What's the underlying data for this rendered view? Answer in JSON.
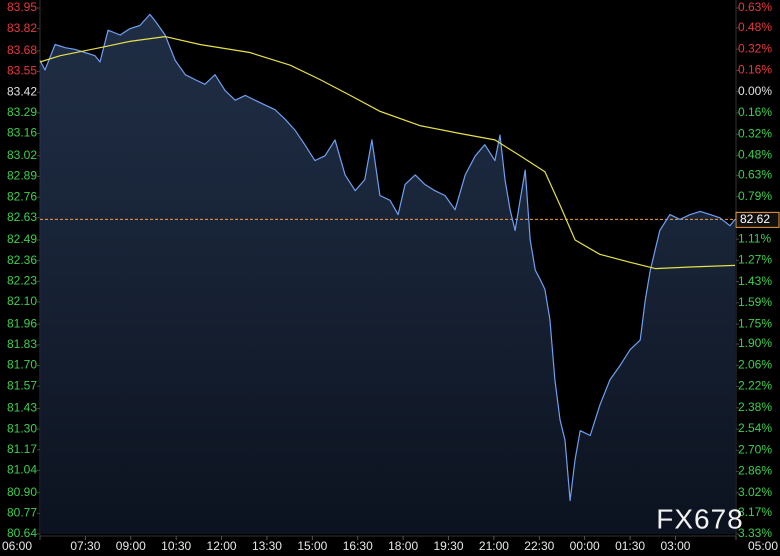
{
  "chart_data": {
    "type": "line",
    "watermark": "FX678",
    "xlim": [
      0,
      1380
    ],
    "xticks": [
      {
        "value": 0,
        "label": "06:00"
      },
      {
        "value": 90,
        "label": "07:30"
      },
      {
        "value": 180,
        "label": "09:00"
      },
      {
        "value": 270,
        "label": "10:30"
      },
      {
        "value": 360,
        "label": "12:00"
      },
      {
        "value": 450,
        "label": "13:30"
      },
      {
        "value": 540,
        "label": "15:00"
      },
      {
        "value": 630,
        "label": "16:30"
      },
      {
        "value": 720,
        "label": "18:00"
      },
      {
        "value": 810,
        "label": "19:30"
      },
      {
        "value": 900,
        "label": "21:00"
      },
      {
        "value": 990,
        "label": "22:30"
      },
      {
        "value": 1080,
        "label": "00:00"
      },
      {
        "value": 1170,
        "label": "01:30"
      },
      {
        "value": 1260,
        "label": "03:00"
      },
      {
        "value": 1380,
        "label": "05:00"
      }
    ],
    "ylim": [
      80.64,
      83.95
    ],
    "yticks": [
      83.95,
      83.82,
      83.68,
      83.55,
      83.42,
      83.29,
      83.16,
      {
        "value": 83.02,
        "label": "83.02"
      },
      82.89,
      82.76,
      82.63,
      82.49,
      82.36,
      82.23,
      {
        "value": 82.1,
        "label": "82.10"
      },
      81.96,
      81.83,
      {
        "value": 81.7,
        "label": "81.70"
      },
      81.57,
      81.43,
      {
        "value": 81.3,
        "label": "81.30"
      },
      81.17,
      81.04,
      {
        "value": 80.9,
        "label": "80.90"
      },
      80.77,
      80.64
    ],
    "y2lim": [
      -3.33,
      0.63
    ],
    "y2ticks": [
      {
        "value": 0.63,
        "label": "0.63%"
      },
      {
        "value": 0.48,
        "label": "0.48%"
      },
      {
        "value": 0.32,
        "label": "0.32%"
      },
      {
        "value": 0.16,
        "label": "0.16%"
      },
      {
        "value": 0,
        "label": "0.00%"
      },
      {
        "value": -0.16,
        "label": "0.16%"
      },
      {
        "value": -0.32,
        "label": "0.32%"
      },
      {
        "value": -0.48,
        "label": "0.48%"
      },
      {
        "value": -0.63,
        "label": "0.63%"
      },
      {
        "value": -0.79,
        "label": "0.79%"
      },
      {
        "value": -0.95,
        "label": "0.95%"
      },
      {
        "value": -1.11,
        "label": "1.11%"
      },
      {
        "value": -1.27,
        "label": "1.27%"
      },
      {
        "value": -1.43,
        "label": "1.43%"
      },
      {
        "value": -1.59,
        "label": "1.59%"
      },
      {
        "value": -1.75,
        "label": "1.75%"
      },
      {
        "value": -1.9,
        "label": "1.90%"
      },
      {
        "value": -2.06,
        "label": "2.06%"
      },
      {
        "value": -2.22,
        "label": "2.22%"
      },
      {
        "value": -2.38,
        "label": "2.38%"
      },
      {
        "value": -2.54,
        "label": "2.54%"
      },
      {
        "value": -2.7,
        "label": "2.70%"
      },
      {
        "value": -2.86,
        "label": "2.86%"
      },
      {
        "value": -3.02,
        "label": "3.02%"
      },
      {
        "value": -3.17,
        "label": "3.17%"
      },
      {
        "value": -3.33,
        "label": "3.33%"
      }
    ],
    "up_color": "#e8383d",
    "down_color": "#3ccf4e",
    "flat_color": "#e0e0e0",
    "last_price": 82.62,
    "last_price_color": "#f0a040",
    "series": [
      {
        "color": "#6f9ff0",
        "fill": true,
        "x": [
          0,
          10,
          30,
          50,
          69,
          89,
          109,
          119,
          135,
          159,
          178,
          198,
          218,
          228,
          248,
          268,
          288,
          307,
          327,
          347,
          367,
          387,
          407,
          426,
          446,
          466,
          486,
          506,
          525,
          545,
          565,
          585,
          605,
          625,
          644,
          658,
          674,
          694,
          710,
          724,
          744,
          763,
          783,
          803,
          823,
          843,
          863,
          882,
          902,
          912,
          922,
          932,
          942,
          952,
          962,
          972,
          982,
          992,
          1001,
          1011,
          1021,
          1031,
          1041,
          1051,
          1061,
          1071,
          1091,
          1110,
          1130,
          1150,
          1170,
          1190,
          1200,
          1210,
          1229,
          1249,
          1269,
          1289,
          1309,
          1329,
          1348,
          1368,
          1378
        ],
        "values": [
          83.62,
          83.56,
          83.72,
          83.7,
          83.69,
          83.67,
          83.65,
          83.61,
          83.81,
          83.78,
          83.82,
          83.84,
          83.91,
          83.87,
          83.78,
          83.62,
          83.53,
          83.5,
          83.47,
          83.53,
          83.43,
          83.37,
          83.4,
          83.37,
          83.34,
          83.31,
          83.25,
          83.18,
          83.09,
          82.99,
          83.02,
          83.12,
          82.9,
          82.8,
          82.87,
          83.12,
          82.77,
          82.74,
          82.65,
          82.84,
          82.9,
          82.84,
          82.8,
          82.77,
          82.68,
          82.9,
          83.02,
          83.09,
          82.99,
          83.15,
          82.87,
          82.68,
          82.55,
          82.74,
          82.93,
          82.49,
          82.3,
          82.24,
          82.18,
          81.99,
          81.61,
          81.36,
          81.23,
          80.85,
          81.11,
          81.29,
          81.26,
          81.45,
          81.61,
          81.7,
          81.8,
          81.86,
          82.11,
          82.3,
          82.55,
          82.65,
          82.62,
          82.65,
          82.67,
          82.65,
          82.63,
          82.58,
          82.62
        ]
      },
      {
        "color": "#e6e04a",
        "fill": false,
        "x": [
          0,
          40,
          119,
          178,
          248,
          317,
          416,
          496,
          555,
          615,
          674,
          753,
          833,
          902,
          952,
          1001,
          1031,
          1061,
          1110,
          1170,
          1220,
          1289,
          1378
        ],
        "values": [
          83.61,
          83.65,
          83.7,
          83.74,
          83.77,
          83.72,
          83.67,
          83.59,
          83.5,
          83.4,
          83.3,
          83.21,
          83.16,
          83.12,
          83.02,
          82.92,
          82.71,
          82.49,
          82.4,
          82.35,
          82.31,
          82.32,
          82.33
        ]
      }
    ]
  }
}
